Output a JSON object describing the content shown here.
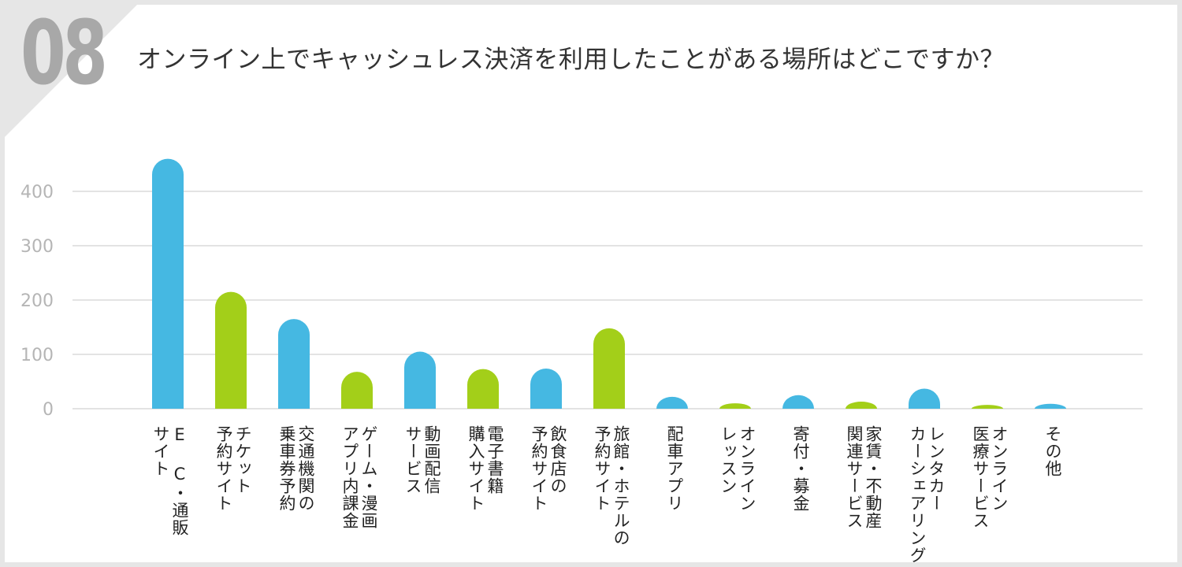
{
  "question_number": "08",
  "title": "オンライン上でキャッシュレス決済を利用したことがある場所はどこですか？",
  "colors": {
    "blue": "#45b8e2",
    "green": "#a3cf19",
    "grid": "#e3e3e3",
    "tick": "#b5b5b5",
    "corner": "#e6e6e6"
  },
  "chart_data": {
    "type": "bar",
    "ylim": [
      0,
      460
    ],
    "yticks": [
      0,
      100,
      200,
      300,
      400
    ],
    "grid": true,
    "categories": [
      {
        "lines": [
          "E C・通販",
          "サイト"
        ],
        "value": 460,
        "color": "blue"
      },
      {
        "lines": [
          "チケット",
          "予約サイト"
        ],
        "value": 215,
        "color": "green"
      },
      {
        "lines": [
          "交通機関の",
          "乗車券予約"
        ],
        "value": 165,
        "color": "blue"
      },
      {
        "lines": [
          "ゲーム・漫画",
          "アプリ内課金"
        ],
        "value": 68,
        "color": "green"
      },
      {
        "lines": [
          "動画配信",
          "サービス"
        ],
        "value": 105,
        "color": "blue"
      },
      {
        "lines": [
          "電子書籍",
          "購入サイト"
        ],
        "value": 73,
        "color": "green"
      },
      {
        "lines": [
          "飲食店の",
          "予約サイト"
        ],
        "value": 74,
        "color": "blue"
      },
      {
        "lines": [
          "旅館・ホテルの",
          "予約サイト"
        ],
        "value": 148,
        "color": "green"
      },
      {
        "lines": [
          "配車アプリ"
        ],
        "value": 22,
        "color": "blue"
      },
      {
        "lines": [
          "オンライン",
          "レッスン"
        ],
        "value": 10,
        "color": "green"
      },
      {
        "lines": [
          "寄付・募金"
        ],
        "value": 25,
        "color": "blue"
      },
      {
        "lines": [
          "家賃・不動産",
          "関連サービス"
        ],
        "value": 13,
        "color": "green"
      },
      {
        "lines": [
          "レンタカー",
          "カーシェアリング"
        ],
        "value": 37,
        "color": "blue"
      },
      {
        "lines": [
          "オンライン",
          "医療サービス"
        ],
        "value": 7,
        "color": "green"
      },
      {
        "lines": [
          "その他"
        ],
        "value": 9,
        "color": "blue"
      }
    ]
  }
}
